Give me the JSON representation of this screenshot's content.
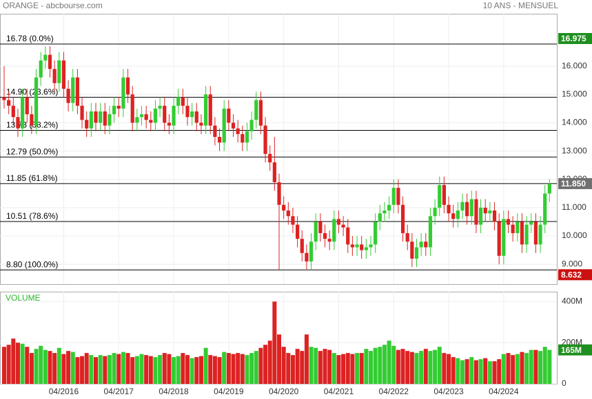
{
  "chart_data": {
    "type": "candlestick",
    "title": "ORANGE - abcbourse.com",
    "subtitle": "10 ANS - MENSUEL",
    "categories": [
      null,
      null,
      null,
      null,
      null,
      null,
      null,
      null,
      null,
      null,
      null,
      null,
      null,
      "04/2016",
      null,
      null,
      null,
      null,
      null,
      null,
      null,
      null,
      null,
      null,
      null,
      "04/2017",
      null,
      null,
      null,
      null,
      null,
      null,
      null,
      null,
      null,
      null,
      null,
      "04/2018",
      null,
      null,
      null,
      null,
      null,
      null,
      null,
      null,
      null,
      null,
      null,
      "04/2019",
      null,
      null,
      null,
      null,
      null,
      null,
      null,
      null,
      null,
      null,
      null,
      "04/2020",
      null,
      null,
      null,
      null,
      null,
      null,
      null,
      null,
      null,
      null,
      null,
      "04/2021",
      null,
      null,
      null,
      null,
      null,
      null,
      null,
      null,
      null,
      null,
      null,
      "04/2022",
      null,
      null,
      null,
      null,
      null,
      null,
      null,
      null,
      null,
      null,
      null,
      "04/2023",
      null,
      null,
      null,
      null,
      null,
      null,
      null,
      null,
      null,
      null,
      null,
      "04/2024",
      null,
      null,
      null,
      null,
      null,
      null,
      null,
      null,
      null,
      null
    ],
    "open": [
      14.9,
      14.8,
      14.6,
      14.2,
      13.8,
      14.9,
      14.3,
      13.9,
      15.6,
      16.2,
      16.4,
      15.9,
      15.4,
      16.2,
      15.2,
      14.7,
      15.6,
      14.6,
      14.1,
      13.8,
      14.4,
      14.0,
      14.4,
      13.9,
      14.3,
      14.6,
      14.5,
      15.6,
      15.0,
      14.0,
      14.2,
      14.3,
      14.1,
      14.0,
      14.5,
      14.6,
      14.0,
      13.9,
      14.6,
      14.9,
      14.6,
      14.2,
      14.4,
      14.0,
      13.9,
      15.0,
      13.9,
      13.5,
      13.3,
      14.5,
      14.0,
      13.8,
      13.6,
      13.3,
      13.7,
      14.1,
      14.8,
      13.9,
      12.9,
      12.6,
      11.9,
      11.1,
      10.9,
      10.7,
      10.4,
      9.9,
      9.4,
      9.1,
      9.8,
      10.5,
      10.1,
      9.9,
      9.8,
      10.6,
      10.4,
      10.3,
      9.7,
      9.6,
      9.7,
      9.5,
      9.6,
      9.7,
      10.5,
      10.8,
      10.9,
      11.1,
      11.7,
      11.1,
      10.1,
      9.8,
      9.2,
      9.6,
      9.8,
      9.6,
      10.7,
      11.0,
      11.8,
      11.1,
      10.8,
      10.6,
      10.9,
      11.2,
      10.7,
      11.3,
      10.4,
      11.0,
      10.8,
      10.9,
      10.5,
      9.3,
      10.6,
      10.4,
      10.1,
      10.5,
      9.7,
      10.4,
      10.5,
      9.7,
      10.4,
      11.5
    ],
    "high": [
      16.0,
      15.1,
      14.9,
      14.5,
      15.2,
      15.2,
      14.6,
      15.9,
      16.5,
      16.7,
      16.7,
      16.2,
      16.5,
      16.5,
      15.5,
      15.9,
      15.9,
      14.9,
      14.4,
      14.7,
      14.7,
      14.7,
      14.7,
      14.6,
      14.9,
      14.9,
      15.9,
      15.9,
      15.3,
      14.5,
      14.6,
      14.6,
      14.4,
      14.8,
      14.9,
      14.9,
      14.3,
      14.9,
      15.2,
      15.2,
      14.9,
      14.7,
      14.7,
      14.3,
      15.3,
      15.3,
      14.2,
      13.8,
      14.8,
      14.8,
      14.3,
      14.1,
      13.9,
      14.0,
      14.4,
      15.1,
      15.1,
      14.2,
      13.2,
      13.5,
      12.2,
      11.4,
      11.2,
      11.0,
      10.7,
      10.2,
      9.7,
      10.1,
      10.8,
      10.8,
      10.4,
      10.2,
      10.9,
      10.9,
      10.7,
      10.6,
      10.0,
      10.0,
      10.0,
      9.9,
      10.0,
      10.8,
      11.1,
      11.2,
      11.4,
      12.0,
      12.0,
      11.4,
      10.4,
      10.1,
      9.9,
      10.1,
      10.1,
      11.0,
      11.3,
      12.1,
      12.1,
      11.4,
      11.1,
      11.2,
      11.5,
      11.5,
      11.6,
      11.6,
      11.3,
      11.3,
      11.2,
      11.2,
      10.8,
      10.9,
      10.9,
      10.7,
      10.8,
      10.8,
      10.7,
      10.8,
      10.8,
      10.7,
      11.8,
      12.0
    ],
    "low": [
      14.5,
      14.3,
      13.9,
      13.5,
      13.5,
      14.0,
      13.6,
      13.6,
      15.3,
      15.9,
      15.6,
      15.1,
      15.1,
      14.9,
      14.4,
      14.4,
      14.3,
      13.8,
      13.5,
      13.5,
      13.7,
      13.7,
      13.6,
      13.6,
      14.0,
      14.2,
      14.2,
      14.7,
      13.7,
      13.7,
      13.9,
      13.8,
      13.7,
      13.7,
      14.2,
      13.7,
      13.6,
      13.6,
      14.3,
      14.3,
      13.9,
      13.9,
      13.7,
      13.6,
      13.6,
      13.6,
      13.2,
      13.0,
      13.0,
      13.7,
      13.5,
      13.3,
      13.0,
      13.0,
      13.4,
      13.8,
      13.6,
      12.6,
      12.3,
      11.6,
      8.8,
      10.6,
      10.4,
      10.1,
      9.6,
      9.1,
      8.8,
      8.8,
      9.5,
      9.8,
      9.6,
      9.5,
      9.5,
      10.1,
      10.0,
      9.4,
      9.3,
      9.3,
      9.2,
      9.2,
      9.3,
      9.4,
      10.2,
      10.5,
      10.6,
      10.8,
      10.8,
      9.8,
      9.5,
      8.9,
      8.9,
      9.3,
      9.3,
      9.3,
      10.4,
      10.7,
      10.8,
      10.5,
      10.3,
      10.3,
      10.6,
      10.4,
      10.4,
      10.1,
      10.1,
      10.5,
      10.5,
      10.2,
      9.0,
      9.0,
      10.1,
      9.8,
      9.8,
      9.4,
      9.4,
      10.1,
      9.4,
      9.4,
      10.1,
      11.2
    ],
    "close": [
      14.8,
      14.6,
      14.2,
      13.8,
      14.9,
      14.3,
      13.9,
      15.6,
      16.2,
      16.4,
      15.9,
      15.4,
      16.2,
      15.2,
      14.7,
      15.6,
      14.6,
      14.1,
      13.8,
      14.4,
      14.0,
      14.4,
      13.9,
      14.3,
      14.6,
      14.5,
      15.6,
      15.0,
      14.0,
      14.2,
      14.3,
      14.1,
      14.0,
      14.5,
      14.6,
      14.0,
      13.9,
      14.6,
      14.9,
      14.6,
      14.2,
      14.4,
      14.0,
      13.9,
      15.0,
      13.9,
      13.5,
      13.3,
      14.5,
      14.0,
      13.8,
      13.6,
      13.3,
      13.7,
      14.1,
      14.8,
      13.9,
      12.9,
      12.6,
      11.9,
      11.1,
      10.9,
      10.7,
      10.4,
      9.9,
      9.4,
      9.1,
      9.8,
      10.5,
      10.1,
      9.9,
      9.8,
      10.6,
      10.4,
      10.3,
      9.7,
      9.6,
      9.7,
      9.5,
      9.6,
      9.7,
      10.5,
      10.8,
      10.9,
      11.1,
      11.7,
      11.1,
      10.1,
      9.8,
      9.2,
      9.6,
      9.8,
      9.6,
      10.7,
      11.0,
      11.8,
      11.1,
      10.8,
      10.6,
      10.9,
      11.2,
      10.7,
      11.3,
      10.4,
      11.0,
      10.8,
      10.9,
      10.5,
      9.3,
      10.6,
      10.4,
      10.1,
      10.5,
      9.7,
      10.4,
      10.5,
      9.7,
      10.4,
      11.5,
      11.85
    ],
    "up_color": "#33cc33",
    "down_color": "#dd2222",
    "ylim": [
      8.3,
      17.85
    ],
    "yticks": [
      {
        "value": 9,
        "label": "9.000"
      },
      {
        "value": 10,
        "label": "10.000"
      },
      {
        "value": 11,
        "label": "11.000"
      },
      {
        "value": 12,
        "label": "12.000"
      },
      {
        "value": 13,
        "label": "13.000"
      },
      {
        "value": 14,
        "label": "14.000"
      },
      {
        "value": 15,
        "label": "15.000"
      },
      {
        "value": 16,
        "label": "16.000"
      }
    ],
    "grid": true,
    "levels": [
      {
        "value": 16.78,
        "label": "16.78  (0.0%)"
      },
      {
        "value": 14.9,
        "label": "14.90  (23.6%)"
      },
      {
        "value": 13.73,
        "label": "13.73  (38.2%)"
      },
      {
        "value": 12.79,
        "label": "12.79  (50.0%)"
      },
      {
        "value": 11.85,
        "label": "11.85  (61.8%)"
      },
      {
        "value": 10.51,
        "label": "10.51  (78.6%)"
      },
      {
        "value": 8.8,
        "label": "8.80  (100.0%)"
      }
    ],
    "price_tags": [
      {
        "value": 16.975,
        "label": "16.975",
        "color": "#1f8f1f"
      },
      {
        "value": 11.85,
        "label": "11.850",
        "color": "#707070"
      },
      {
        "value": 8.632,
        "label": "8.632",
        "color": "#cc1111"
      }
    ],
    "volume_label": "VOLUME",
    "volume": [
      180,
      190,
      220,
      200,
      195,
      180,
      150,
      170,
      185,
      165,
      160,
      150,
      175,
      145,
      160,
      155,
      130,
      135,
      150,
      140,
      130,
      140,
      135,
      140,
      150,
      145,
      155,
      150,
      130,
      135,
      145,
      140,
      135,
      130,
      140,
      150,
      145,
      130,
      135,
      150,
      140,
      125,
      130,
      135,
      175,
      140,
      135,
      130,
      155,
      150,
      145,
      150,
      145,
      140,
      150,
      160,
      175,
      190,
      210,
      400,
      240,
      180,
      150,
      140,
      170,
      160,
      240,
      180,
      175,
      160,
      170,
      165,
      150,
      140,
      145,
      150,
      145,
      150,
      150,
      170,
      160,
      175,
      180,
      190,
      210,
      185,
      165,
      170,
      160,
      155,
      150,
      160,
      170,
      160,
      165,
      180,
      150,
      145,
      130,
      125,
      115,
      120,
      130,
      115,
      120,
      125,
      110,
      110,
      120,
      145,
      150,
      140,
      145,
      155,
      150,
      165,
      165,
      160,
      180,
      165
    ],
    "vlim": [
      0,
      448
    ],
    "vticks": [
      0,
      {
        "value": 200,
        "label": "200M"
      },
      {
        "value": 400,
        "label": "400M"
      }
    ],
    "volume_tag": {
      "value": 165,
      "label": "165M",
      "color": "#1f8f1f"
    }
  }
}
